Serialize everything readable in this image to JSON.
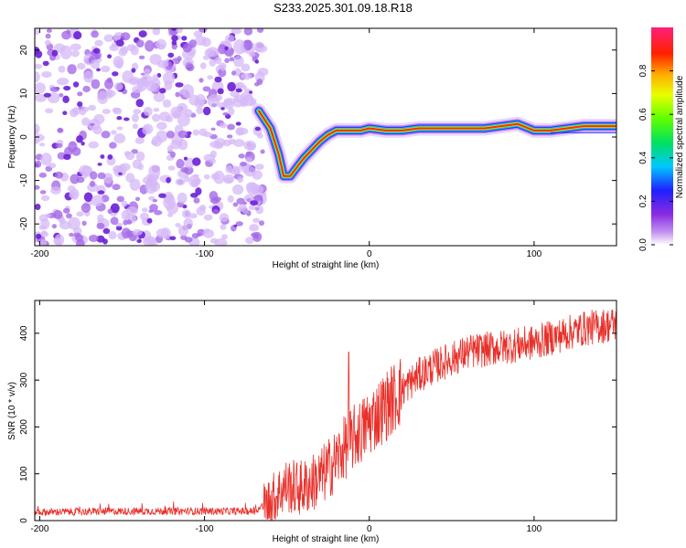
{
  "title": "S233.2025.301.09.18.R18",
  "chart_data": [
    {
      "type": "heatmap",
      "name": "spectrogram",
      "xlabel": "Height of straight line (km)",
      "ylabel": "Frequency (Hz)",
      "xlim": [
        -203,
        150
      ],
      "ylim": [
        -25,
        25
      ],
      "xticks": [
        -200,
        -100,
        0,
        100
      ],
      "xtick_labels": [
        "-200",
        "-100",
        "0",
        "100"
      ],
      "yticks": [
        -20,
        -10,
        0,
        10,
        20
      ],
      "ytick_labels": [
        "-20",
        "-10",
        "0",
        "10",
        "20"
      ],
      "noise_region_x": [
        -203,
        -64
      ],
      "ridge": {
        "x": [
          -67,
          -60,
          -55,
          -52,
          -48,
          -44,
          -40,
          -35,
          -30,
          -25,
          -20,
          -15,
          -10,
          -5,
          0,
          10,
          20,
          30,
          40,
          50,
          60,
          70,
          80,
          90,
          100,
          110,
          120,
          130,
          140,
          150
        ],
        "freq": [
          6,
          2,
          -4,
          -9,
          -9,
          -7,
          -5,
          -3,
          -1,
          0.5,
          1.5,
          1.5,
          1.5,
          1.5,
          2,
          1.5,
          1.5,
          2,
          2,
          2,
          2,
          2,
          2.5,
          3,
          1.5,
          1.5,
          2,
          2.5,
          2.5,
          2.5
        ]
      },
      "colorbar": {
        "label": "Normalized spectral amplitude",
        "range": [
          0,
          1
        ],
        "ticks": [
          0.0,
          0.2,
          0.4,
          0.6,
          0.8
        ],
        "tick_labels": [
          "0.0",
          "0.2",
          "0.4",
          "0.6",
          "0.8"
        ]
      }
    },
    {
      "type": "line",
      "name": "snr",
      "xlabel": "Height of straight line (km)",
      "ylabel": "SNR (10 * v/v)",
      "xlim": [
        -203,
        150
      ],
      "ylim": [
        0,
        470
      ],
      "xticks": [
        -200,
        -100,
        0,
        100
      ],
      "xtick_labels": [
        "-200",
        "-100",
        "0",
        "100"
      ],
      "yticks": [
        0,
        100,
        200,
        300,
        400
      ],
      "ytick_labels": [
        "0",
        "100",
        "200",
        "300",
        "400"
      ],
      "color": "#e8302a",
      "series": [
        {
          "name": "SNR",
          "x": [
            -203,
            -150,
            -100,
            -70,
            -62,
            -55,
            -50,
            -45,
            -40,
            -35,
            -30,
            -25,
            -20,
            -15,
            -10,
            -5,
            0,
            10,
            20,
            30,
            40,
            50,
            60,
            70,
            80,
            90,
            100,
            110,
            120,
            130,
            140,
            150
          ],
          "y": [
            18,
            20,
            20,
            20,
            35,
            60,
            75,
            70,
            70,
            80,
            90,
            110,
            130,
            155,
            175,
            190,
            210,
            245,
            280,
            310,
            330,
            345,
            360,
            365,
            370,
            375,
            380,
            390,
            400,
            410,
            415,
            420
          ]
        }
      ],
      "spike": {
        "x": -12.5,
        "y": 360
      }
    }
  ]
}
